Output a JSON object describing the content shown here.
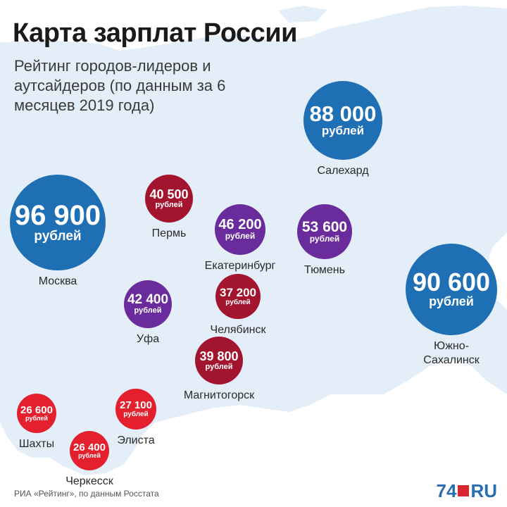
{
  "title": "Карта зарплат России",
  "subtitle": "Рейтинг городов-лидеров и аутсайдеров (по данным за 6 месяцев 2019 года)",
  "colors": {
    "map_fill": "#e4eef9",
    "leader": "#1f6fb5",
    "middle": "#6a2c9c",
    "outsider_dark": "#a3142f",
    "outsider_light": "#e5202e"
  },
  "cities": [
    {
      "name": "Москва",
      "value": "96 900",
      "salary_rub": 96900,
      "unit": "рублей",
      "color": "#1f6fb5"
    },
    {
      "name": "Южно-\nСахалинск",
      "value": "90 600",
      "salary_rub": 90600,
      "unit": "рублей",
      "color": "#1f6fb5"
    },
    {
      "name": "Салехард",
      "value": "88 000",
      "salary_rub": 88000,
      "unit": "рублей",
      "color": "#1f6fb5"
    },
    {
      "name": "Тюмень",
      "value": "53 600",
      "salary_rub": 53600,
      "unit": "рублей",
      "color": "#6a2c9c"
    },
    {
      "name": "Екатеринбург",
      "value": "46 200",
      "salary_rub": 46200,
      "unit": "рублей",
      "color": "#6a2c9c"
    },
    {
      "name": "Уфа",
      "value": "42 400",
      "salary_rub": 42400,
      "unit": "рублей",
      "color": "#6a2c9c"
    },
    {
      "name": "Пермь",
      "value": "40 500",
      "salary_rub": 40500,
      "unit": "рублей",
      "color": "#a3142f"
    },
    {
      "name": "Магнитогорск",
      "value": "39 800",
      "salary_rub": 39800,
      "unit": "рублей",
      "color": "#a3142f"
    },
    {
      "name": "Челябинск",
      "value": "37 200",
      "salary_rub": 37200,
      "unit": "рублей",
      "color": "#a3142f"
    },
    {
      "name": "Элиста",
      "value": "27 100",
      "salary_rub": 27100,
      "unit": "рублей",
      "color": "#e5202e"
    },
    {
      "name": "Шахты",
      "value": "26 600",
      "salary_rub": 26600,
      "unit": "рублей",
      "color": "#e5202e"
    },
    {
      "name": "Черкесск",
      "value": "26 400",
      "salary_rub": 26400,
      "unit": "рублей",
      "color": "#e5202e"
    }
  ],
  "source": "РИА «Рейтинг», по данным Росстата",
  "logo": {
    "number": "74",
    "suffix": "RU"
  }
}
